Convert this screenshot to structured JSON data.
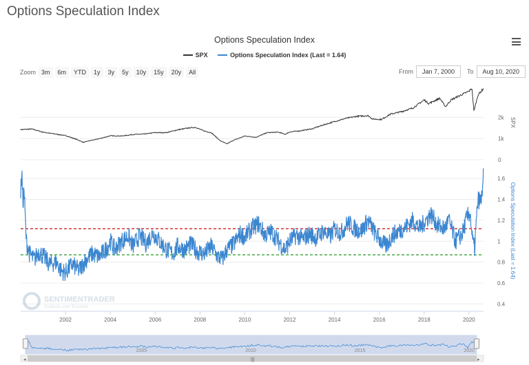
{
  "page_title": "Options Speculation Index",
  "chart_title": "Options Speculation Index",
  "legend": [
    {
      "label": "SPX",
      "color": "#333333"
    },
    {
      "label": "Options Speculation Index (Last = 1.64)",
      "color": "#3b86d0"
    }
  ],
  "zoom": {
    "label": "Zoom",
    "buttons": [
      "3m",
      "6m",
      "YTD",
      "1y",
      "3y",
      "5y",
      "10y",
      "15y",
      "20y",
      "All"
    ]
  },
  "range": {
    "from_label": "From",
    "from_value": "Jan 7, 2000",
    "to_label": "To",
    "to_value": "Aug 10, 2020"
  },
  "watermark": {
    "name": "SENTIMENTRADER",
    "tagline": "Analysis over Emotion"
  },
  "navigator": {
    "year_labels": [
      "2005",
      "2010",
      "2015",
      "2020"
    ]
  },
  "chart_data": {
    "type": "line",
    "x_ticks": [
      "2002",
      "2004",
      "2006",
      "2008",
      "2010",
      "2012",
      "2014",
      "2016",
      "2018",
      "2020"
    ],
    "xlim": [
      2000.0,
      2020.65
    ],
    "spx": {
      "name": "SPX",
      "axis_label": "SPX",
      "ticks": [
        "2k",
        "1k",
        "0"
      ],
      "tick_values": [
        2000,
        1000,
        0
      ],
      "ylim": [
        0,
        3700
      ],
      "color": "#333333",
      "x": [
        2000.0,
        2000.5,
        2001.0,
        2001.5,
        2002.0,
        2002.5,
        2002.8,
        2003.0,
        2003.5,
        2004.0,
        2004.5,
        2005.0,
        2005.5,
        2006.0,
        2006.5,
        2007.0,
        2007.5,
        2007.8,
        2008.2,
        2008.5,
        2008.9,
        2009.2,
        2009.5,
        2010.0,
        2010.5,
        2011.0,
        2011.5,
        2011.8,
        2012.0,
        2012.5,
        2013.0,
        2013.5,
        2014.0,
        2014.5,
        2015.0,
        2015.5,
        2015.7,
        2016.1,
        2016.5,
        2017.0,
        2017.5,
        2018.0,
        2018.2,
        2018.7,
        2018.95,
        2019.2,
        2019.5,
        2020.0,
        2020.13,
        2020.22,
        2020.4,
        2020.65
      ],
      "values": [
        1420,
        1450,
        1300,
        1220,
        1140,
        960,
        820,
        880,
        990,
        1130,
        1120,
        1190,
        1210,
        1280,
        1280,
        1410,
        1500,
        1530,
        1350,
        1280,
        900,
        750,
        920,
        1120,
        1060,
        1280,
        1300,
        1200,
        1310,
        1370,
        1460,
        1640,
        1800,
        1950,
        2050,
        2080,
        1920,
        1900,
        2150,
        2270,
        2440,
        2820,
        2650,
        2900,
        2500,
        2820,
        2980,
        3230,
        3380,
        2300,
        3050,
        3360
      ]
    },
    "osi": {
      "name": "Options Speculation Index (Last = 1.64)",
      "axis_label": "Options Speculation Index (Last = 1.64)",
      "ticks": [
        "1.6",
        "1.4",
        "1.2",
        "1",
        "0.8",
        "0.6",
        "0.4"
      ],
      "tick_values": [
        1.6,
        1.4,
        1.2,
        1.0,
        0.8,
        0.6,
        0.4
      ],
      "ylim": [
        0.33,
        1.7
      ],
      "color": "#3b86d0",
      "upper_threshold": 1.12,
      "lower_threshold": 0.87,
      "upper_color": "#cc2222",
      "lower_color": "#229922",
      "x": [
        2000.0,
        2000.05,
        2000.1,
        2000.15,
        2000.25,
        2000.4,
        2000.6,
        2000.8,
        2001.0,
        2001.3,
        2001.6,
        2001.8,
        2002.0,
        2002.3,
        2002.6,
        2002.9,
        2003.2,
        2003.5,
        2003.8,
        2004.0,
        2004.2,
        2004.5,
        2004.8,
        2005.0,
        2005.3,
        2005.6,
        2005.9,
        2006.2,
        2006.5,
        2006.8,
        2007.0,
        2007.3,
        2007.6,
        2007.9,
        2008.2,
        2008.5,
        2008.8,
        2009.0,
        2009.2,
        2009.5,
        2009.8,
        2010.0,
        2010.3,
        2010.6,
        2010.9,
        2011.2,
        2011.5,
        2011.8,
        2012.0,
        2012.3,
        2012.6,
        2012.9,
        2013.2,
        2013.5,
        2013.8,
        2014.0,
        2014.3,
        2014.6,
        2014.9,
        2015.2,
        2015.5,
        2015.8,
        2016.0,
        2016.3,
        2016.6,
        2016.9,
        2017.2,
        2017.5,
        2017.8,
        2018.0,
        2018.3,
        2018.6,
        2018.9,
        2019.1,
        2019.4,
        2019.7,
        2019.9,
        2020.05,
        2020.15,
        2020.25,
        2020.4,
        2020.55,
        2020.65
      ],
      "values": [
        1.45,
        1.68,
        1.35,
        1.5,
        1.0,
        0.88,
        0.82,
        0.9,
        0.86,
        0.78,
        0.8,
        0.72,
        0.7,
        0.78,
        0.72,
        0.82,
        0.88,
        0.85,
        0.92,
        1.0,
        0.92,
        1.0,
        1.05,
        0.95,
        1.05,
        0.98,
        1.08,
        1.0,
        0.92,
        0.88,
        0.95,
        0.92,
        0.97,
        0.9,
        0.88,
        0.95,
        0.85,
        0.83,
        0.92,
        0.97,
        1.07,
        1.04,
        1.12,
        1.17,
        1.06,
        1.09,
        1.0,
        0.92,
        1.0,
        1.06,
        1.02,
        1.07,
        1.03,
        1.1,
        1.04,
        1.12,
        1.08,
        1.18,
        1.12,
        1.1,
        1.2,
        1.08,
        1.02,
        0.95,
        1.06,
        1.1,
        1.14,
        1.2,
        1.12,
        1.18,
        1.26,
        1.15,
        1.12,
        1.2,
        1.0,
        1.07,
        1.22,
        1.28,
        1.02,
        0.93,
        1.4,
        1.38,
        1.64
      ]
    }
  }
}
